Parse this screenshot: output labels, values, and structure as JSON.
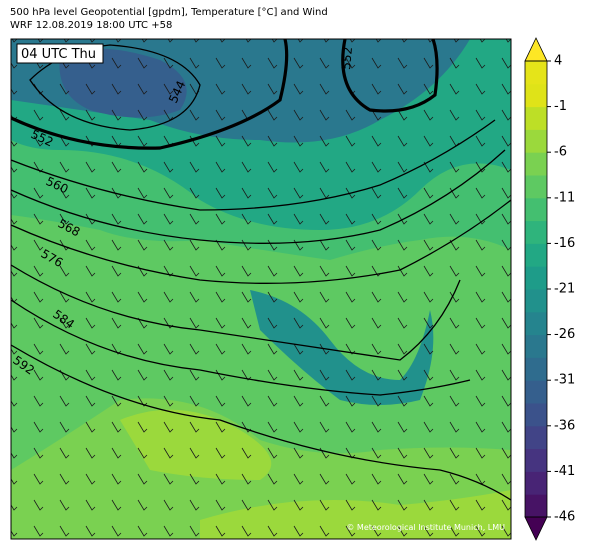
{
  "header": {
    "line1": "500 hPa level Geopotential [gpdm], Temperature [°C] and Wind",
    "line2": "WRF 12.08.2019 18:00 UTC +58"
  },
  "map": {
    "time_label": "04 UTC Thu",
    "contour_labels": [
      "552",
      "544",
      "552",
      "560",
      "568",
      "576",
      "584",
      "592"
    ],
    "copyright": "© Meteorological Institute Munich, LMU"
  },
  "colorbar": {
    "range": [
      -46,
      4
    ],
    "ticks": [
      4,
      -1,
      -6,
      -11,
      -16,
      -21,
      -26,
      -31,
      -36,
      -41,
      -46
    ],
    "colors": [
      "#471365",
      "#482475",
      "#463480",
      "#414487",
      "#3b528b",
      "#355f8d",
      "#2f6c8e",
      "#2a788e",
      "#25848e",
      "#21918c",
      "#1e9c89",
      "#22a884",
      "#2fb47c",
      "#44bf70",
      "#5ec962",
      "#7ad151",
      "#9bd93c",
      "#bddf26",
      "#dfe318",
      "#e5e419"
    ],
    "under_color": "#440154",
    "over_color": "#fde725"
  }
}
